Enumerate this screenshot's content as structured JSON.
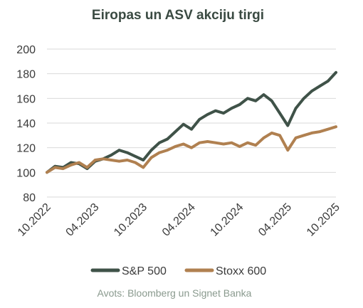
{
  "chart_data": {
    "type": "line",
    "title": "Eiropas un ASV akciju tirgi",
    "source": "Avots: Bloomberg un Signet Banka",
    "ylim": [
      80,
      200
    ],
    "yticks": [
      80,
      100,
      120,
      140,
      160,
      180,
      200
    ],
    "xticks": [
      "10.2022",
      "04.2023",
      "10.2023",
      "04.2024",
      "10.2024",
      "04.2025",
      "10.2025"
    ],
    "grid": "horizontal",
    "legend_position": "bottom",
    "x": [
      "10.2022",
      "11.2022",
      "12.2022",
      "01.2023",
      "02.2023",
      "03.2023",
      "04.2023",
      "05.2023",
      "06.2023",
      "07.2023",
      "08.2023",
      "09.2023",
      "10.2023",
      "11.2023",
      "12.2023",
      "01.2024",
      "02.2024",
      "03.2024",
      "04.2024",
      "05.2024",
      "06.2024",
      "07.2024",
      "08.2024",
      "09.2024",
      "10.2024",
      "11.2024",
      "12.2024",
      "01.2025",
      "02.2025",
      "03.2025",
      "04.2025",
      "05.2025",
      "06.2025",
      "07.2025",
      "08.2025",
      "09.2025",
      "10.2025"
    ],
    "series": [
      {
        "name": "S&P 500",
        "color": "#3f5248",
        "values": [
          100,
          105,
          104,
          108,
          107,
          103,
          109,
          111,
          114,
          118,
          116,
          113,
          110,
          118,
          124,
          127,
          133,
          139,
          135,
          143,
          147,
          150,
          148,
          152,
          155,
          160,
          158,
          163,
          158,
          148,
          138,
          152,
          160,
          166,
          170,
          174,
          181
        ]
      },
      {
        "name": "Stoxx 600",
        "color": "#b08050",
        "values": [
          100,
          104,
          103,
          106,
          108,
          104,
          110,
          111,
          110,
          109,
          110,
          108,
          104,
          112,
          116,
          118,
          121,
          123,
          120,
          124,
          125,
          124,
          123,
          124,
          121,
          124,
          122,
          128,
          132,
          130,
          118,
          128,
          130,
          132,
          133,
          135,
          137
        ]
      }
    ]
  }
}
